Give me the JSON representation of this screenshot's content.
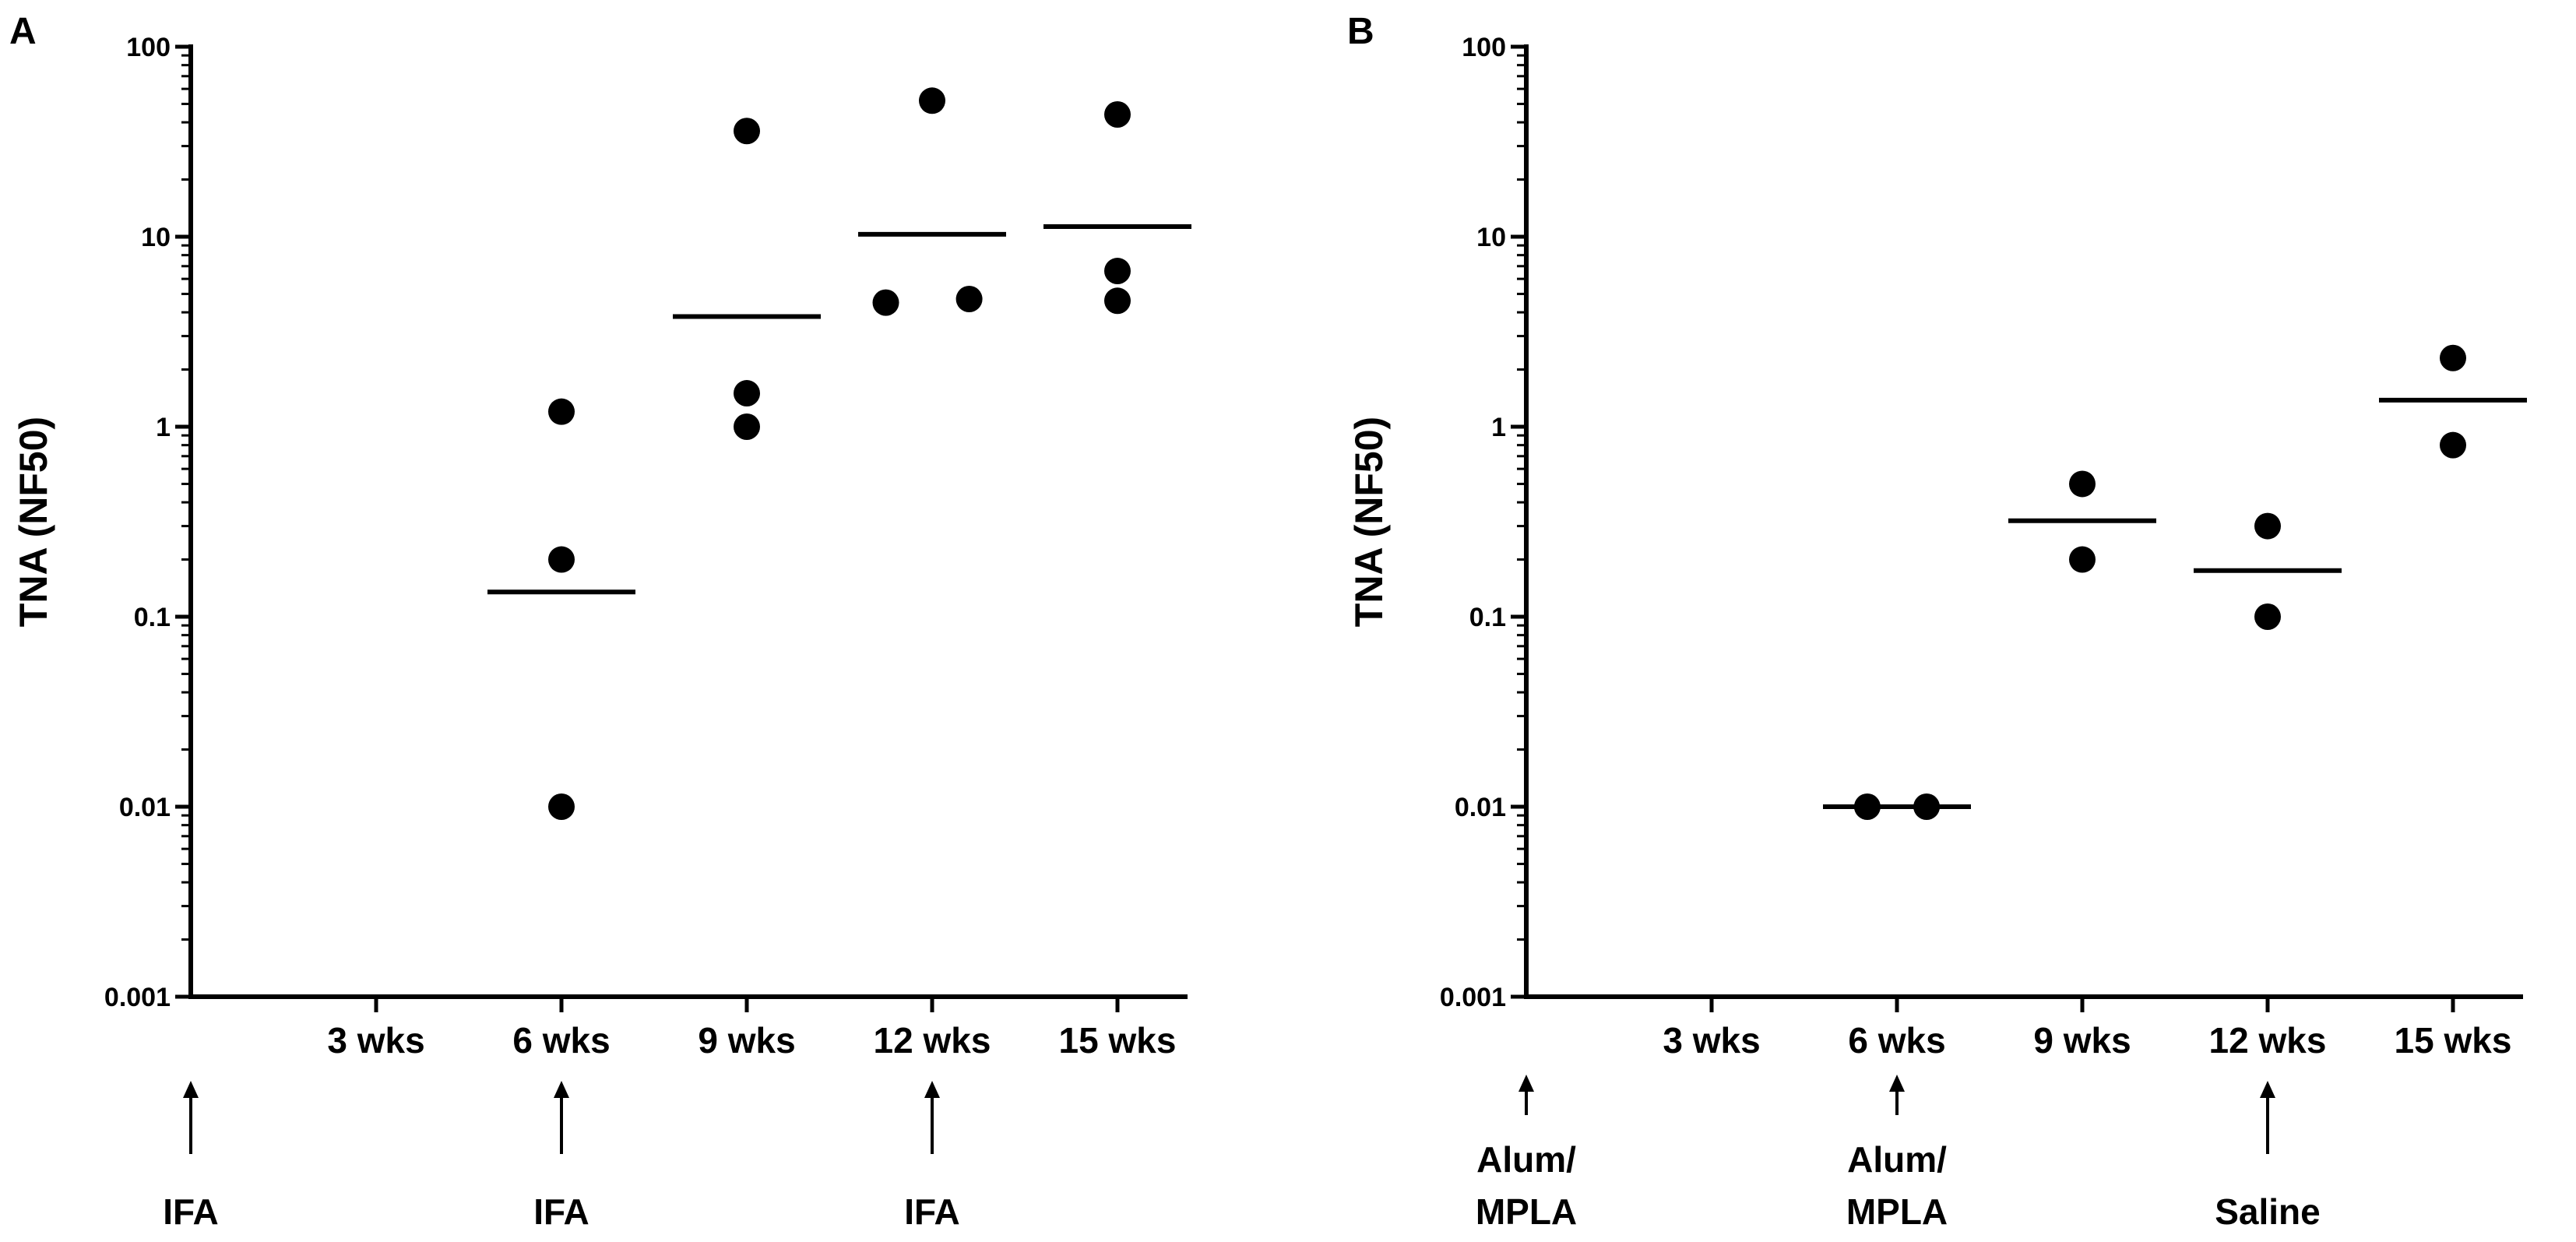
{
  "chart_data": [
    {
      "panel_label": "A",
      "type": "scatter",
      "yscale": "log",
      "ylim": [
        0.001,
        100
      ],
      "ylabel": "TNA (NF50)",
      "yticks": [
        "0.001",
        "0.01",
        "0.1",
        "1",
        "10",
        "100"
      ],
      "categories": [
        "",
        "3 wks",
        "6 wks",
        "9 wks",
        "12 wks",
        "15 wks"
      ],
      "points": [
        {
          "category": "6 wks",
          "y": 1.2,
          "dx": 0
        },
        {
          "category": "6 wks",
          "y": 0.2,
          "dx": 0
        },
        {
          "category": "6 wks",
          "y": 0.01,
          "dx": 0
        },
        {
          "category": "9 wks",
          "y": 36,
          "dx": 0
        },
        {
          "category": "9 wks",
          "y": 1.5,
          "dx": 0
        },
        {
          "category": "9 wks",
          "y": 1.0,
          "dx": 0
        },
        {
          "category": "12 wks",
          "y": 52,
          "dx": 0
        },
        {
          "category": "12 wks",
          "y": 4.5,
          "dx": -0.25
        },
        {
          "category": "12 wks",
          "y": 4.7,
          "dx": 0.2
        },
        {
          "category": "15 wks",
          "y": 44,
          "dx": 0
        },
        {
          "category": "15 wks",
          "y": 6.6,
          "dx": 0
        },
        {
          "category": "15 wks",
          "y": 4.6,
          "dx": 0
        }
      ],
      "means": [
        {
          "category": "6 wks",
          "y": 0.135
        },
        {
          "category": "9 wks",
          "y": 3.8
        },
        {
          "category": "12 wks",
          "y": 10.3
        },
        {
          "category": "15 wks",
          "y": 11.3
        }
      ],
      "annotations": [
        {
          "category": "",
          "lines": [
            "IFA"
          ]
        },
        {
          "category": "6 wks",
          "lines": [
            "IFA"
          ]
        },
        {
          "category": "12 wks",
          "lines": [
            "IFA"
          ]
        }
      ]
    },
    {
      "panel_label": "B",
      "type": "scatter",
      "yscale": "log",
      "ylim": [
        0.001,
        100
      ],
      "ylabel": "TNA (NF50)",
      "yticks": [
        "0.001",
        "0.01",
        "0.1",
        "1",
        "10",
        "100"
      ],
      "categories": [
        "",
        "3 wks",
        "6 wks",
        "9 wks",
        "12 wks",
        "15 wks"
      ],
      "points": [
        {
          "category": "6 wks",
          "y": 0.01,
          "dx": -0.16
        },
        {
          "category": "6 wks",
          "y": 0.01,
          "dx": 0.16
        },
        {
          "category": "9 wks",
          "y": 0.5,
          "dx": 0
        },
        {
          "category": "9 wks",
          "y": 0.2,
          "dx": 0
        },
        {
          "category": "12 wks",
          "y": 0.3,
          "dx": 0
        },
        {
          "category": "12 wks",
          "y": 0.1,
          "dx": 0
        },
        {
          "category": "15 wks",
          "y": 2.3,
          "dx": 0
        },
        {
          "category": "15 wks",
          "y": 0.8,
          "dx": 0
        }
      ],
      "means": [
        {
          "category": "6 wks",
          "y": 0.01
        },
        {
          "category": "9 wks",
          "y": 0.32
        },
        {
          "category": "12 wks",
          "y": 0.175
        },
        {
          "category": "15 wks",
          "y": 1.38
        }
      ],
      "annotations": [
        {
          "category": "",
          "lines": [
            "Alum/",
            "MPLA"
          ]
        },
        {
          "category": "6 wks",
          "lines": [
            "Alum/",
            "MPLA"
          ]
        },
        {
          "category": "12 wks",
          "lines": [
            "Saline"
          ]
        }
      ]
    }
  ]
}
